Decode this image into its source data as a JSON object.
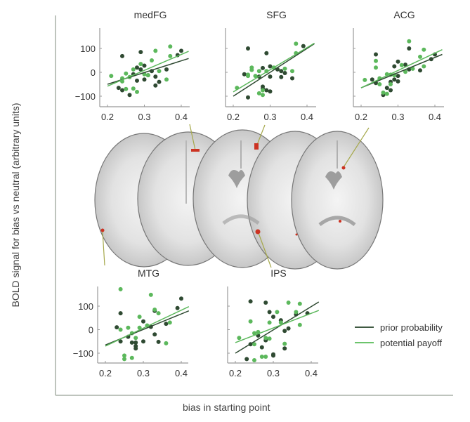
{
  "figure": {
    "ylabel": "BOLD signal for bias vs neutral (arbitrary units)",
    "xlabel": "bias in starting point",
    "colors": {
      "prior_probability": "#2f4a32",
      "potential_payoff": "#5cb85c",
      "activation": "#cc3322",
      "leader": "#a5a84a"
    },
    "legend": [
      {
        "label": "prior probability",
        "color": "#3f5a42"
      },
      {
        "label": "potential payoff",
        "color": "#6cc46c"
      }
    ],
    "brain_image": {
      "description": "axial MRI slices with activation clusters",
      "slices": 5
    }
  },
  "chart_data": [
    {
      "type": "scatter",
      "title": "medFG",
      "xlim": [
        0.19,
        0.42
      ],
      "ylim": [
        -150,
        190
      ],
      "xticks": [
        "0.2",
        "0.3",
        "0.4"
      ],
      "yticks": [
        "100",
        "0",
        "−100"
      ],
      "show_yticklabels": true,
      "series": [
        {
          "name": "prior probability",
          "points": [
            [
              0.23,
              -65
            ],
            [
              0.24,
              -75
            ],
            [
              0.24,
              68
            ],
            [
              0.26,
              -95
            ],
            [
              0.27,
              -8
            ],
            [
              0.28,
              -35
            ],
            [
              0.28,
              20
            ],
            [
              0.29,
              85
            ],
            [
              0.29,
              12
            ],
            [
              0.3,
              28
            ],
            [
              0.3,
              -30
            ],
            [
              0.31,
              -12
            ],
            [
              0.32,
              5
            ],
            [
              0.33,
              -18
            ],
            [
              0.33,
              -55
            ],
            [
              0.34,
              -40
            ],
            [
              0.36,
              12
            ],
            [
              0.39,
              72
            ],
            [
              0.4,
              90
            ]
          ],
          "fit": [
            [
              0.2,
              -50
            ],
            [
              0.42,
              58
            ]
          ]
        },
        {
          "name": "potential payoff",
          "points": [
            [
              0.21,
              -15
            ],
            [
              0.24,
              -25
            ],
            [
              0.24,
              -38
            ],
            [
              0.25,
              -5
            ],
            [
              0.25,
              -70
            ],
            [
              0.26,
              -20
            ],
            [
              0.27,
              12
            ],
            [
              0.27,
              -68
            ],
            [
              0.28,
              -82
            ],
            [
              0.29,
              35
            ],
            [
              0.3,
              -8
            ],
            [
              0.31,
              -12
            ],
            [
              0.32,
              50
            ],
            [
              0.33,
              90
            ],
            [
              0.34,
              5
            ],
            [
              0.36,
              -30
            ],
            [
              0.37,
              108
            ],
            [
              0.37,
              68
            ]
          ],
          "fit": [
            [
              0.2,
              -58
            ],
            [
              0.42,
              88
            ]
          ]
        }
      ]
    },
    {
      "type": "scatter",
      "title": "SFG",
      "xlim": [
        0.19,
        0.42
      ],
      "ylim": [
        -150,
        190
      ],
      "xticks": [
        "0.2",
        "0.3",
        "0.4"
      ],
      "yticks": [
        "100",
        "0",
        "−100"
      ],
      "show_yticklabels": false,
      "series": [
        {
          "name": "prior probability",
          "points": [
            [
              0.23,
              -8
            ],
            [
              0.24,
              100
            ],
            [
              0.24,
              -105
            ],
            [
              0.27,
              -18
            ],
            [
              0.28,
              18
            ],
            [
              0.28,
              -60
            ],
            [
              0.28,
              -68
            ],
            [
              0.29,
              80
            ],
            [
              0.29,
              -75
            ],
            [
              0.3,
              25
            ],
            [
              0.3,
              -18
            ],
            [
              0.3,
              -80
            ],
            [
              0.32,
              12
            ],
            [
              0.33,
              5
            ],
            [
              0.33,
              -20
            ],
            [
              0.34,
              -3
            ],
            [
              0.36,
              -25
            ],
            [
              0.39,
              110
            ]
          ],
          "fit": [
            [
              0.2,
              -100
            ],
            [
              0.42,
              120
            ]
          ]
        },
        {
          "name": "potential payoff",
          "points": [
            [
              0.21,
              -65
            ],
            [
              0.24,
              -10
            ],
            [
              0.24,
              -15
            ],
            [
              0.25,
              20
            ],
            [
              0.25,
              10
            ],
            [
              0.26,
              -15
            ],
            [
              0.27,
              5
            ],
            [
              0.27,
              -88
            ],
            [
              0.28,
              -95
            ],
            [
              0.28,
              -75
            ],
            [
              0.29,
              5
            ],
            [
              0.31,
              20
            ],
            [
              0.34,
              15
            ],
            [
              0.36,
              5
            ],
            [
              0.37,
              120
            ],
            [
              0.37,
              80
            ]
          ],
          "fit": [
            [
              0.2,
              -82
            ],
            [
              0.42,
              122
            ]
          ]
        }
      ]
    },
    {
      "type": "scatter",
      "title": "ACG",
      "xlim": [
        0.19,
        0.42
      ],
      "ylim": [
        -150,
        190
      ],
      "xticks": [
        "0.2",
        "0.3",
        "0.4"
      ],
      "yticks": [
        "100",
        "0",
        "−100"
      ],
      "show_yticklabels": false,
      "series": [
        {
          "name": "prior probability",
          "points": [
            [
              0.23,
              -30
            ],
            [
              0.24,
              75
            ],
            [
              0.24,
              -45
            ],
            [
              0.26,
              -95
            ],
            [
              0.27,
              -65
            ],
            [
              0.28,
              -40
            ],
            [
              0.28,
              -75
            ],
            [
              0.29,
              25
            ],
            [
              0.29,
              -30
            ],
            [
              0.3,
              45
            ],
            [
              0.3,
              -15
            ],
            [
              0.3,
              -38
            ],
            [
              0.32,
              32
            ],
            [
              0.33,
              100
            ],
            [
              0.33,
              12
            ],
            [
              0.36,
              8
            ],
            [
              0.39,
              55
            ],
            [
              0.4,
              75
            ]
          ],
          "fit": [
            [
              0.2,
              -65
            ],
            [
              0.42,
              75
            ]
          ]
        },
        {
          "name": "potential payoff",
          "points": [
            [
              0.21,
              -32
            ],
            [
              0.24,
              48
            ],
            [
              0.24,
              20
            ],
            [
              0.25,
              -25
            ],
            [
              0.25,
              -50
            ],
            [
              0.26,
              -85
            ],
            [
              0.27,
              -90
            ],
            [
              0.27,
              -8
            ],
            [
              0.28,
              -10
            ],
            [
              0.28,
              -50
            ],
            [
              0.29,
              -12
            ],
            [
              0.31,
              30
            ],
            [
              0.32,
              2
            ],
            [
              0.33,
              130
            ],
            [
              0.34,
              15
            ],
            [
              0.36,
              65
            ],
            [
              0.37,
              95
            ],
            [
              0.37,
              25
            ]
          ],
          "fit": [
            [
              0.2,
              -65
            ],
            [
              0.42,
              95
            ]
          ]
        }
      ]
    },
    {
      "type": "scatter",
      "title": "MTG",
      "xlim": [
        0.19,
        0.42
      ],
      "ylim": [
        -145,
        185
      ],
      "xticks": [
        "0.2",
        "0.3",
        "0.4"
      ],
      "yticks": [
        "100",
        "0",
        "−100"
      ],
      "show_yticklabels": true,
      "series": [
        {
          "name": "prior probability",
          "points": [
            [
              0.23,
              10
            ],
            [
              0.24,
              70
            ],
            [
              0.24,
              -50
            ],
            [
              0.26,
              -30
            ],
            [
              0.27,
              -55
            ],
            [
              0.28,
              -55
            ],
            [
              0.28,
              -70
            ],
            [
              0.28,
              -80
            ],
            [
              0.3,
              35
            ],
            [
              0.3,
              -50
            ],
            [
              0.32,
              12
            ],
            [
              0.33,
              80
            ],
            [
              0.33,
              -20
            ],
            [
              0.34,
              -52
            ],
            [
              0.36,
              25
            ],
            [
              0.39,
              92
            ],
            [
              0.4,
              132
            ]
          ],
          "fit": [
            [
              0.2,
              -65
            ],
            [
              0.42,
              80
            ]
          ]
        },
        {
          "name": "potential payoff",
          "points": [
            [
              0.24,
              172
            ],
            [
              0.24,
              0
            ],
            [
              0.25,
              -110
            ],
            [
              0.25,
              -125
            ],
            [
              0.26,
              8
            ],
            [
              0.27,
              -120
            ],
            [
              0.27,
              -15
            ],
            [
              0.28,
              -35
            ],
            [
              0.29,
              55
            ],
            [
              0.29,
              8
            ],
            [
              0.31,
              18
            ],
            [
              0.32,
              148
            ],
            [
              0.33,
              85
            ],
            [
              0.34,
              70
            ],
            [
              0.36,
              -58
            ],
            [
              0.37,
              30
            ]
          ],
          "fit": [
            [
              0.2,
              -70
            ],
            [
              0.42,
              98
            ]
          ]
        }
      ]
    },
    {
      "type": "scatter",
      "title": "IPS",
      "xlim": [
        0.19,
        0.42
      ],
      "ylim": [
        -145,
        185
      ],
      "xticks": [
        "0.2",
        "0.3",
        "0.4"
      ],
      "yticks": [
        "100",
        "0",
        "−100"
      ],
      "show_yticklabels": false,
      "series": [
        {
          "name": "prior probability",
          "points": [
            [
              0.23,
              -125
            ],
            [
              0.24,
              120
            ],
            [
              0.24,
              -62
            ],
            [
              0.26,
              -25
            ],
            [
              0.27,
              -75
            ],
            [
              0.28,
              115
            ],
            [
              0.28,
              -45
            ],
            [
              0.29,
              75
            ],
            [
              0.3,
              55
            ],
            [
              0.3,
              -105
            ],
            [
              0.3,
              -110
            ],
            [
              0.32,
              40
            ],
            [
              0.33,
              -5
            ],
            [
              0.33,
              -80
            ],
            [
              0.34,
              5
            ],
            [
              0.36,
              65
            ],
            [
              0.39,
              70
            ]
          ],
          "fit": [
            [
              0.2,
              -100
            ],
            [
              0.42,
              118
            ]
          ]
        },
        {
          "name": "potential payoff",
          "points": [
            [
              0.21,
              -35
            ],
            [
              0.24,
              35
            ],
            [
              0.25,
              -15
            ],
            [
              0.25,
              -62
            ],
            [
              0.25,
              -130
            ],
            [
              0.26,
              -10
            ],
            [
              0.27,
              -115
            ],
            [
              0.28,
              -115
            ],
            [
              0.28,
              -35
            ],
            [
              0.29,
              30
            ],
            [
              0.29,
              -38
            ],
            [
              0.31,
              75
            ],
            [
              0.32,
              30
            ],
            [
              0.33,
              -60
            ],
            [
              0.34,
              115
            ],
            [
              0.36,
              75
            ],
            [
              0.37,
              110
            ],
            [
              0.37,
              20
            ]
          ],
          "fit": [
            [
              0.2,
              -55
            ],
            [
              0.42,
              82
            ]
          ]
        }
      ]
    }
  ]
}
